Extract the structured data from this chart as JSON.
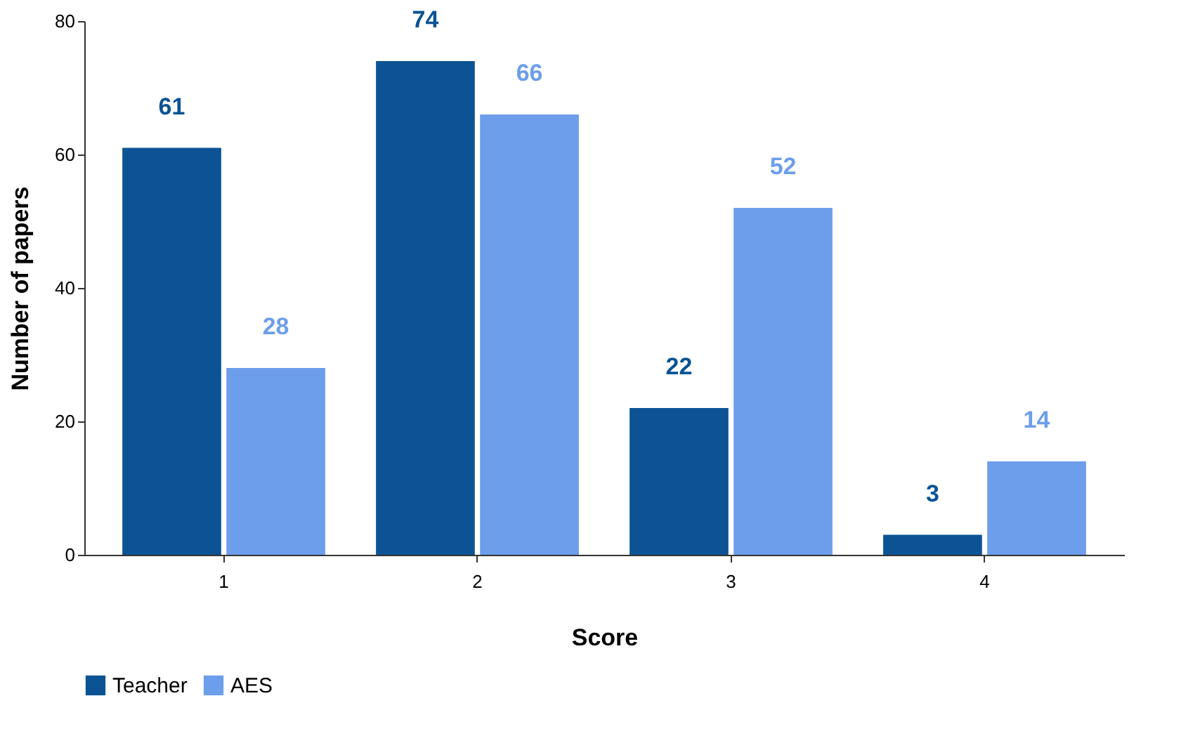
{
  "chart_data": {
    "type": "bar",
    "xlabel": "Score",
    "ylabel": "Number of papers",
    "categories": [
      "1",
      "2",
      "3",
      "4"
    ],
    "series": [
      {
        "name": "Teacher",
        "color": "#0b5394",
        "values": [
          61,
          74,
          22,
          3
        ]
      },
      {
        "name": "AES",
        "color": "#6d9eeb",
        "values": [
          28,
          66,
          52,
          14
        ]
      }
    ],
    "ylim": [
      0,
      80
    ],
    "yticks": [
      0,
      20,
      40,
      60,
      80
    ],
    "grid": false,
    "legend": "bottom",
    "data_labels": true
  }
}
